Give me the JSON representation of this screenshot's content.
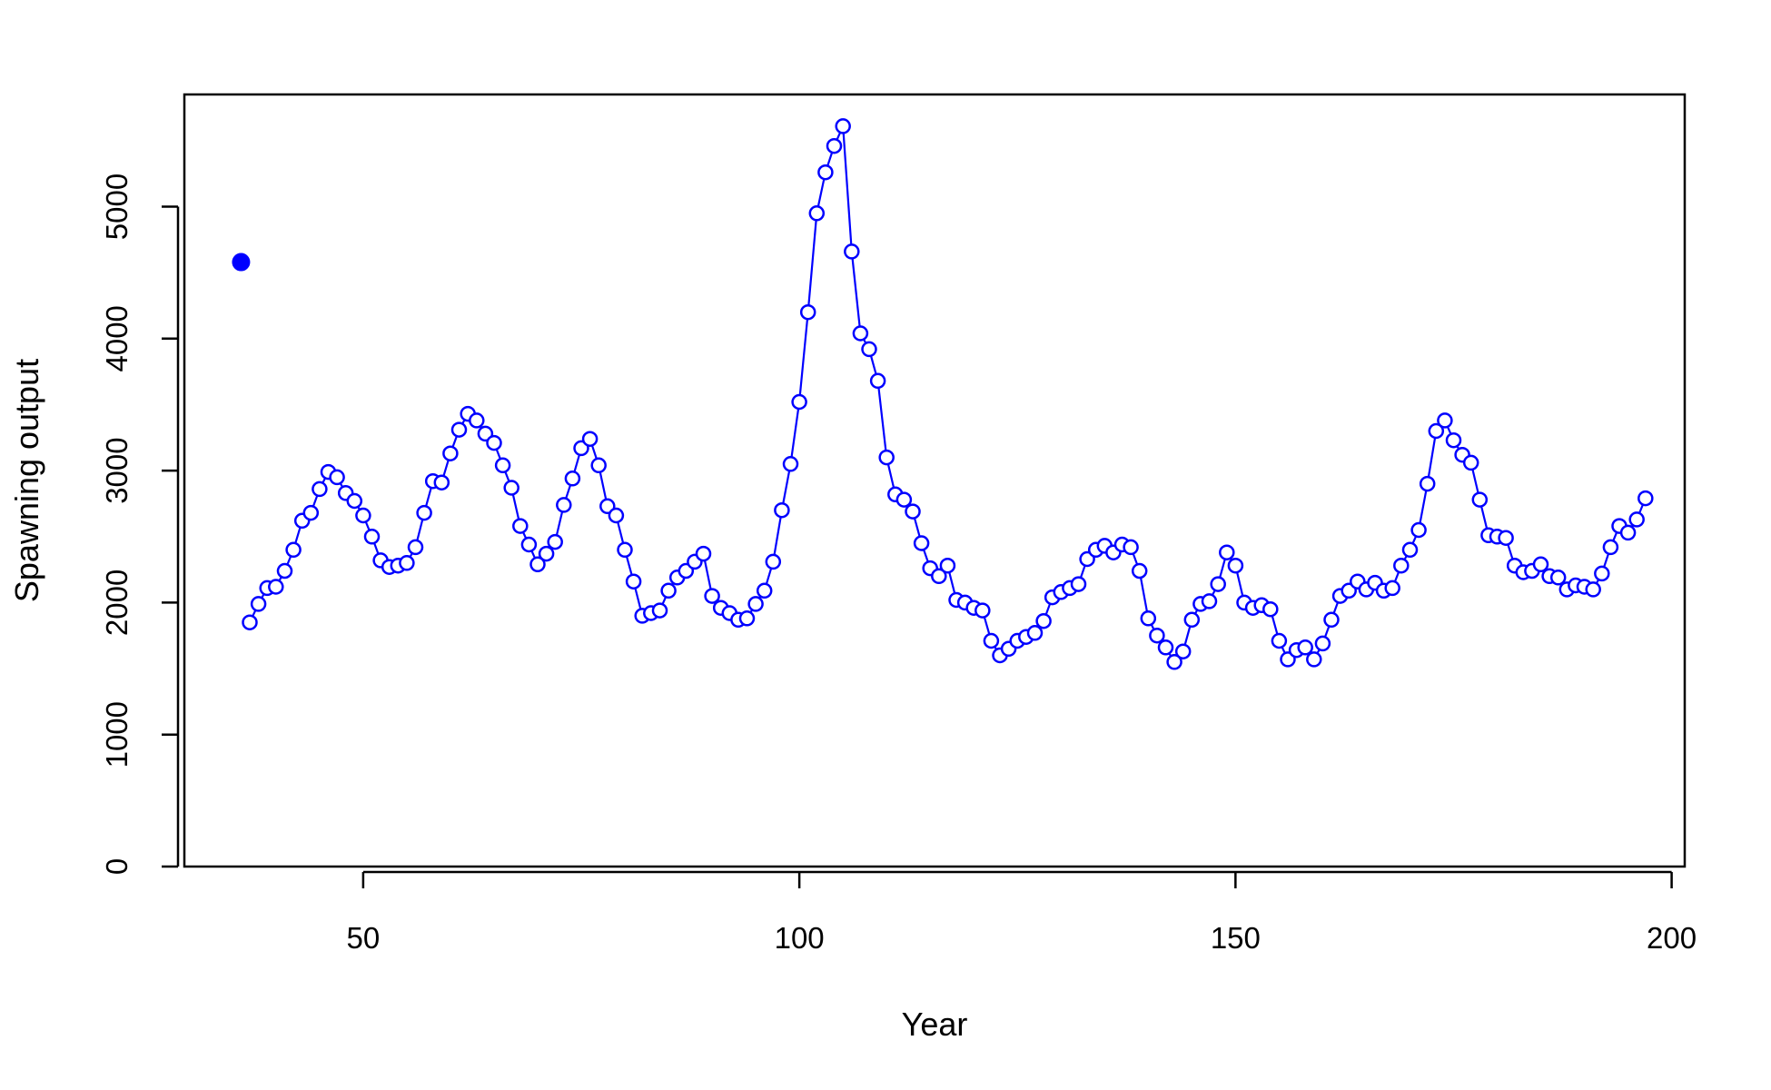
{
  "chart_data": {
    "type": "line",
    "title": "",
    "xlabel": "Year",
    "ylabel": "Spawning output",
    "xlim": [
      29.5,
      201.5
    ],
    "ylim": [
      0,
      5850
    ],
    "x_ticks": [
      50,
      100,
      150,
      200
    ],
    "y_ticks": [
      0,
      1000,
      2000,
      3000,
      4000,
      5000
    ],
    "grid": false,
    "legend": "none",
    "colors": {
      "series": "#0000ff",
      "axis": "#000000"
    },
    "virgin_point": {
      "x": 36,
      "y": 4580
    },
    "series": [
      {
        "x_start": 37,
        "values": [
          1850,
          1990,
          2110,
          2120,
          2240,
          2400,
          2620,
          2680,
          2860,
          2990,
          2950,
          2830,
          2770,
          2660,
          2500,
          2320,
          2270,
          2280,
          2300,
          2420,
          2680,
          2920,
          2910,
          3130,
          3310,
          3430,
          3380,
          3280,
          3210,
          3040,
          2870,
          2580,
          2440,
          2290,
          2370,
          2460,
          2740,
          2940,
          3170,
          3240,
          3040,
          2730,
          2660,
          2400,
          2160,
          1900,
          1920,
          1940,
          2090,
          2190,
          2240,
          2310,
          2370,
          2050,
          1960,
          1920,
          1870,
          1880,
          1990,
          2090,
          2310,
          2700,
          3050,
          3520,
          4200,
          4950,
          5260,
          5460,
          5610,
          4660,
          4040,
          3920,
          3680,
          3100,
          2820,
          2780,
          2690,
          2450,
          2260,
          2200,
          2280,
          2020,
          2000,
          1960,
          1940,
          1710,
          1600,
          1650,
          1710,
          1740,
          1770,
          1860,
          2040,
          2080,
          2110,
          2140,
          2330,
          2400,
          2430,
          2380,
          2440,
          2420,
          2240,
          1880,
          1750,
          1660,
          1550,
          1630,
          1870,
          1990,
          2010,
          2140,
          2380,
          2280,
          2000,
          1960,
          1980,
          1950,
          1710,
          1570,
          1640,
          1660,
          1570,
          1690,
          1870,
          2050,
          2090,
          2160,
          2100,
          2150,
          2090,
          2110,
          2280,
          2400,
          2550,
          2900,
          3300,
          3380,
          3230,
          3120,
          3060,
          2780,
          2510,
          2500,
          2490,
          2280,
          2230,
          2240,
          2290,
          2200,
          2190,
          2100,
          2130,
          2120,
          2100,
          2220,
          2420,
          2580,
          2530,
          2630,
          2790
        ]
      }
    ]
  }
}
